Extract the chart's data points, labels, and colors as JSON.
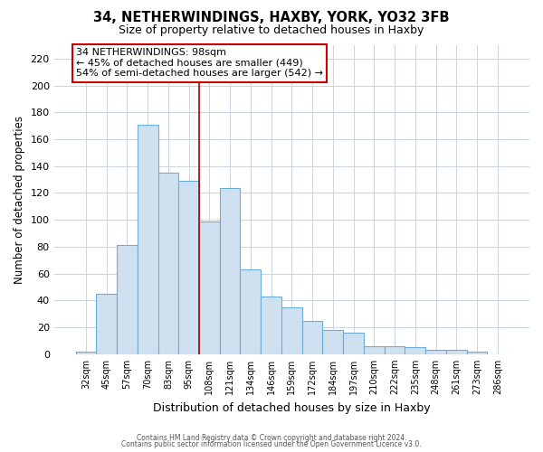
{
  "title": "34, NETHERWINDINGS, HAXBY, YORK, YO32 3FB",
  "subtitle": "Size of property relative to detached houses in Haxby",
  "xlabel": "Distribution of detached houses by size in Haxby",
  "ylabel": "Number of detached properties",
  "bar_labels": [
    "32sqm",
    "45sqm",
    "57sqm",
    "70sqm",
    "83sqm",
    "95sqm",
    "108sqm",
    "121sqm",
    "134sqm",
    "146sqm",
    "159sqm",
    "172sqm",
    "184sqm",
    "197sqm",
    "210sqm",
    "222sqm",
    "235sqm",
    "248sqm",
    "261sqm",
    "273sqm",
    "286sqm"
  ],
  "bar_values": [
    2,
    45,
    81,
    171,
    135,
    129,
    99,
    124,
    63,
    43,
    35,
    25,
    18,
    16,
    6,
    6,
    5,
    3,
    3,
    2,
    0
  ],
  "bar_color": "#cfe0f0",
  "bar_edge_color": "#6aadd5",
  "ylim": [
    0,
    230
  ],
  "yticks": [
    0,
    20,
    40,
    60,
    80,
    100,
    120,
    140,
    160,
    180,
    200,
    220
  ],
  "property_line_color": "#aa0000",
  "annotation_title": "34 NETHERWINDINGS: 98sqm",
  "annotation_line1": "← 45% of detached houses are smaller (449)",
  "annotation_line2": "54% of semi-detached houses are larger (542) →",
  "annotation_box_color": "#ffffff",
  "annotation_box_edge_color": "#cc0000",
  "footer1": "Contains HM Land Registry data © Crown copyright and database right 2024.",
  "footer2": "Contains public sector information licensed under the Open Government Licence v3.0.",
  "background_color": "#ffffff",
  "grid_color": "#c8d4e0"
}
